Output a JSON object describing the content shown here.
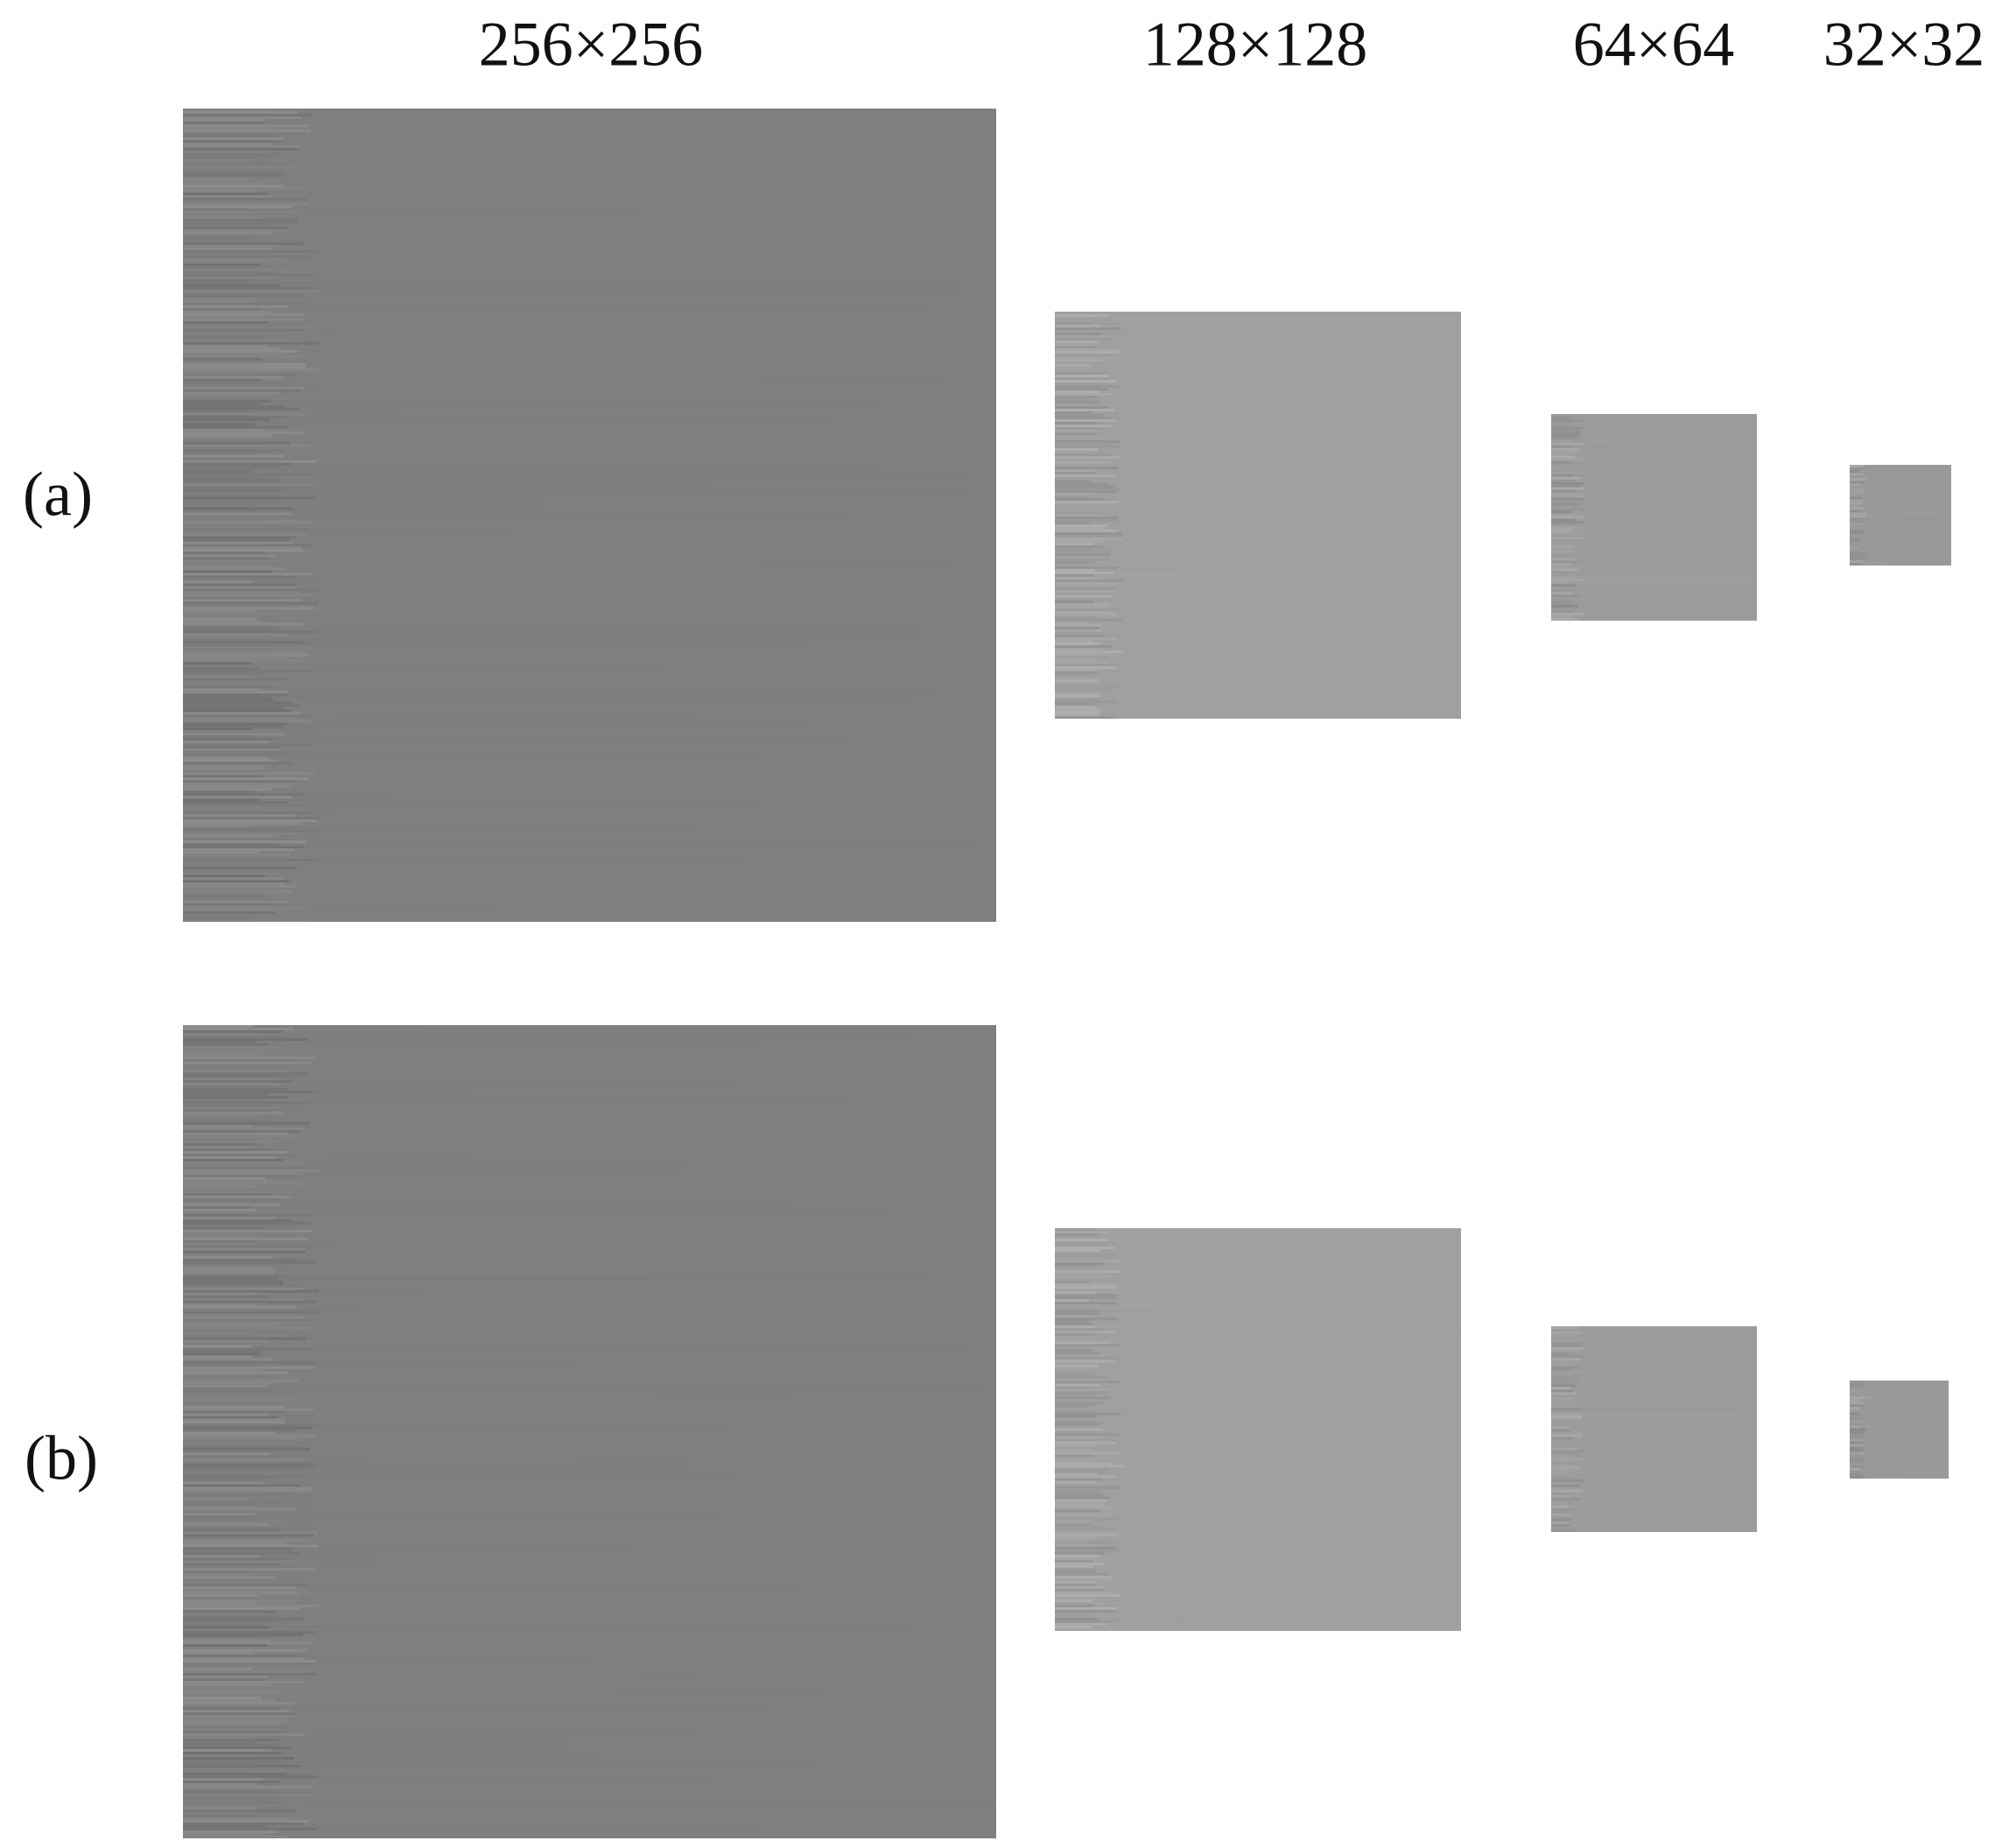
{
  "column_labels": [
    "256×256",
    "128×128",
    "64×64",
    "32×32"
  ],
  "row_labels": [
    "(a)",
    "(b)"
  ]
}
